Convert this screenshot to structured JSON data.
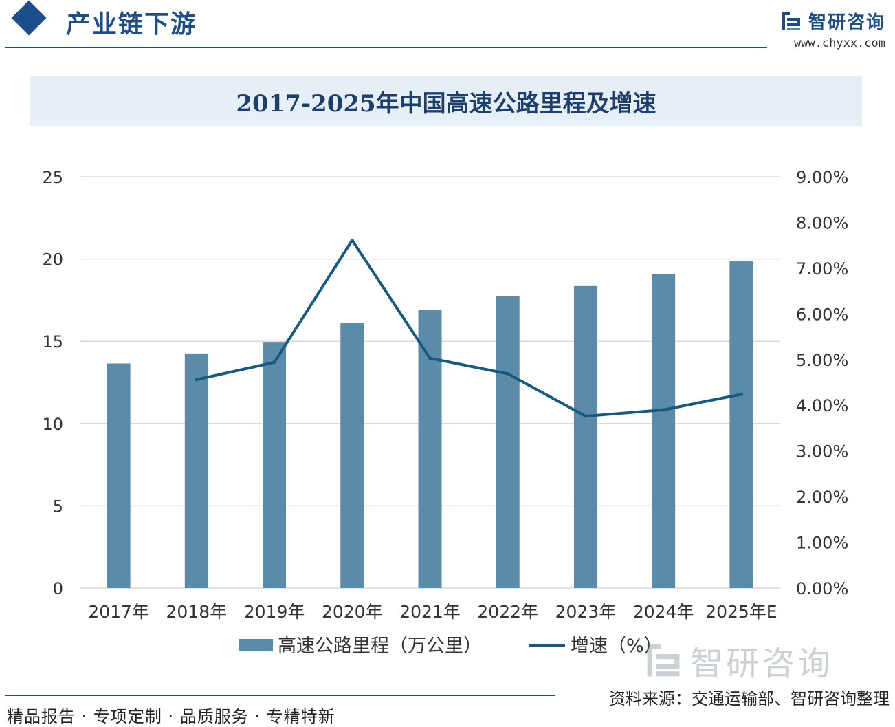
{
  "header": {
    "section_title": "产业链下游",
    "brand_name": "智研咨询",
    "brand_url": "www.chyxx.com"
  },
  "footer": {
    "tagline": "精品报告 · 专项定制 · 品质服务 · 专精特新",
    "source": "资料来源：交通运输部、智研咨询整理"
  },
  "watermark": {
    "text": "智研咨询"
  },
  "colors": {
    "bar": "#5b8ba8",
    "line": "#175a80",
    "grid": "#d9d9d9",
    "accent": "#1d4e89"
  },
  "chart_data": {
    "type": "bar",
    "title": "2017-2025年中国高速公路里程及增速",
    "categories": [
      "2017年",
      "2018年",
      "2019年",
      "2020年",
      "2021年",
      "2022年",
      "2023年",
      "2024年",
      "2025年E"
    ],
    "series": [
      {
        "name": "高速公路里程（万公里）",
        "type": "bar",
        "axis": "left",
        "values": [
          13.65,
          14.26,
          14.96,
          16.1,
          16.91,
          17.73,
          18.36,
          19.08,
          19.88
        ]
      },
      {
        "name": "增速（%）",
        "type": "line",
        "axis": "right",
        "values": [
          null,
          4.56,
          4.94,
          7.61,
          5.03,
          4.69,
          3.76,
          3.9,
          4.24
        ]
      }
    ],
    "y_left": {
      "range": [
        0,
        25
      ],
      "ticks": [
        "0",
        "5",
        "10",
        "15",
        "20",
        "25"
      ]
    },
    "y_right": {
      "range": [
        0,
        9
      ],
      "ticks": [
        "0.00%",
        "1.00%",
        "2.00%",
        "3.00%",
        "4.00%",
        "5.00%",
        "6.00%",
        "7.00%",
        "8.00%",
        "9.00%"
      ]
    },
    "grid": true,
    "legend": "bottom"
  }
}
